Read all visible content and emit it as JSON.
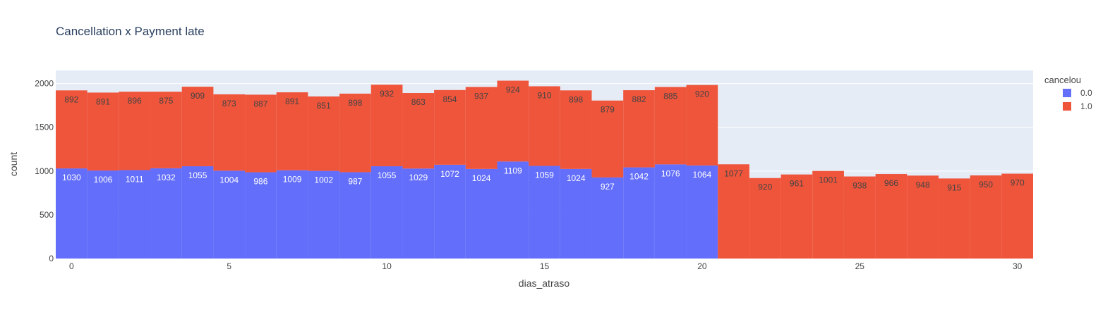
{
  "chart_data": {
    "type": "bar",
    "barmode": "stack",
    "title": "Cancellation x Payment late",
    "xlabel": "dias_atraso",
    "ylabel": "count",
    "x": [
      0,
      1,
      2,
      3,
      4,
      5,
      6,
      7,
      8,
      9,
      10,
      11,
      12,
      13,
      14,
      15,
      16,
      17,
      18,
      19,
      20,
      21,
      22,
      23,
      24,
      25,
      26,
      27,
      28,
      29,
      30
    ],
    "xlim": [
      -0.5,
      30.5
    ],
    "ylim": [
      0,
      2150
    ],
    "xticks": [
      0,
      5,
      10,
      15,
      20,
      25,
      30
    ],
    "yticks": [
      0,
      500,
      1000,
      1500,
      2000
    ],
    "legend_title": "cancelou",
    "legend_position": "top-right",
    "grid": true,
    "plot_bgcolor": "#E5ECF6",
    "series": [
      {
        "name": "0.0",
        "color": "#636EFA",
        "values": [
          1030,
          1006,
          1011,
          1032,
          1055,
          1004,
          986,
          1009,
          1002,
          987,
          1055,
          1029,
          1072,
          1024,
          1109,
          1059,
          1024,
          927,
          1042,
          1076,
          1064,
          0,
          0,
          0,
          0,
          0,
          0,
          0,
          0,
          0,
          0
        ]
      },
      {
        "name": "1.0",
        "color": "#EF553B",
        "values": [
          892,
          891,
          896,
          875,
          909,
          873,
          887,
          891,
          851,
          898,
          932,
          863,
          854,
          937,
          924,
          910,
          898,
          879,
          882,
          885,
          920,
          1077,
          920,
          961,
          1001,
          938,
          966,
          948,
          915,
          950,
          970
        ]
      }
    ]
  }
}
